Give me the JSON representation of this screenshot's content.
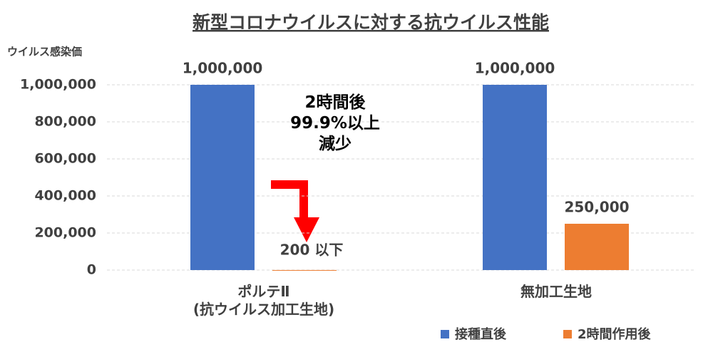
{
  "chart_data": {
    "type": "bar",
    "title": "新型コロナウイルスに対する抗ウイルス性能",
    "y_axis_label": "ウイルス感染価",
    "categories": [
      "ポルテⅡ\n(抗ウイルス加工生地)",
      "無加工生地"
    ],
    "series": [
      {
        "name": "接種直後",
        "color": "#4472c4",
        "values": [
          1000000,
          1000000
        ],
        "value_labels": [
          "1,000,000",
          "1,000,000"
        ]
      },
      {
        "name": "2時間作用後",
        "color": "#ed7d31",
        "values": [
          200,
          250000
        ],
        "value_labels": [
          "200 以下",
          "250,000"
        ]
      }
    ],
    "annotation": "2時間後\n99.9%以上\n減少",
    "ylim": [
      0,
      1000000
    ],
    "yticks": [
      0,
      {
        "value": 200000,
        "label": "200,000"
      },
      {
        "value": 400000,
        "label": "400,000"
      },
      {
        "value": 600000,
        "label": "600,000"
      },
      {
        "value": 800000,
        "label": "800,000"
      },
      {
        "value": 1000000,
        "label": "1,000,000"
      }
    ],
    "grid": true,
    "legend": "bottom"
  }
}
